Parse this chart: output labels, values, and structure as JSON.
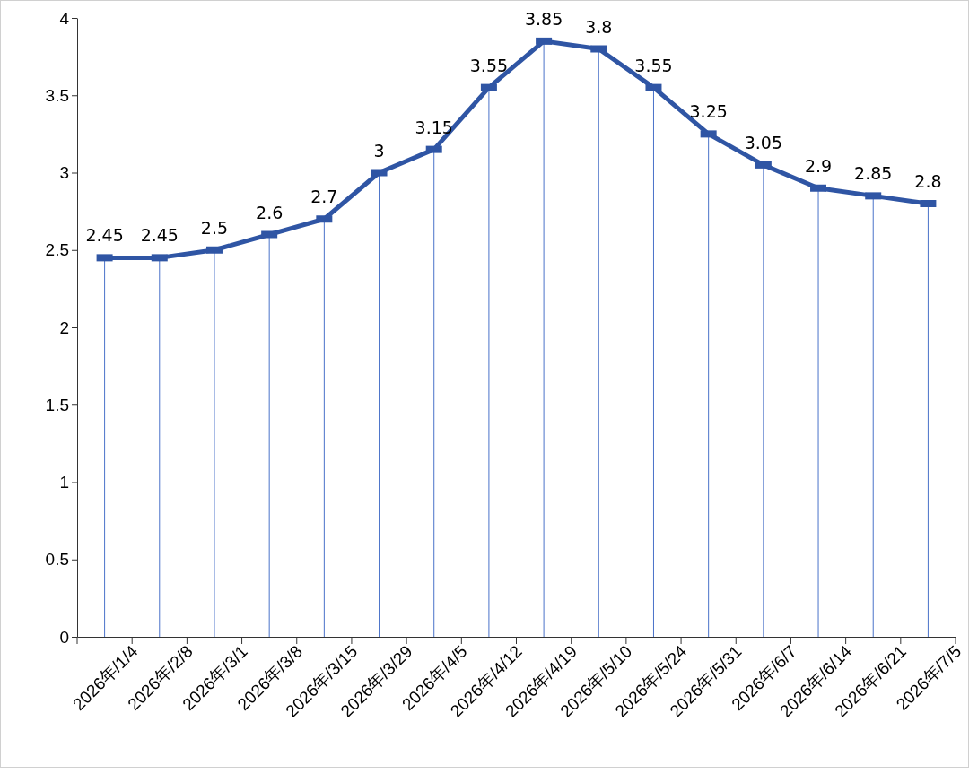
{
  "chart_data": {
    "type": "line",
    "categories": [
      "2026年/1/4",
      "2026年/2/8",
      "2026年/3/1",
      "2026年/3/8",
      "2026年/3/15",
      "2026年/3/29",
      "2026年/4/5",
      "2026年/4/12",
      "2026年/4/19",
      "2026年/5/10",
      "2026年/5/24",
      "2026年/5/31",
      "2026年/6/7",
      "2026年/6/14",
      "2026年/6/21",
      "2026年/7/5"
    ],
    "series": [
      {
        "color": "#2f55a4",
        "values": [
          2.45,
          2.45,
          2.5,
          2.6,
          2.7,
          3,
          3.15,
          3.55,
          3.85,
          3.8,
          3.55,
          3.25,
          3.05,
          2.9,
          2.85,
          2.8
        ]
      }
    ],
    "ylim": [
      0,
      4
    ],
    "yticks": [
      0,
      0.5,
      1,
      1.5,
      2,
      2.5,
      3,
      3.5,
      4
    ],
    "data_labels": true,
    "marker": "square",
    "line_style": "solid",
    "grid": "x",
    "legend": false
  }
}
